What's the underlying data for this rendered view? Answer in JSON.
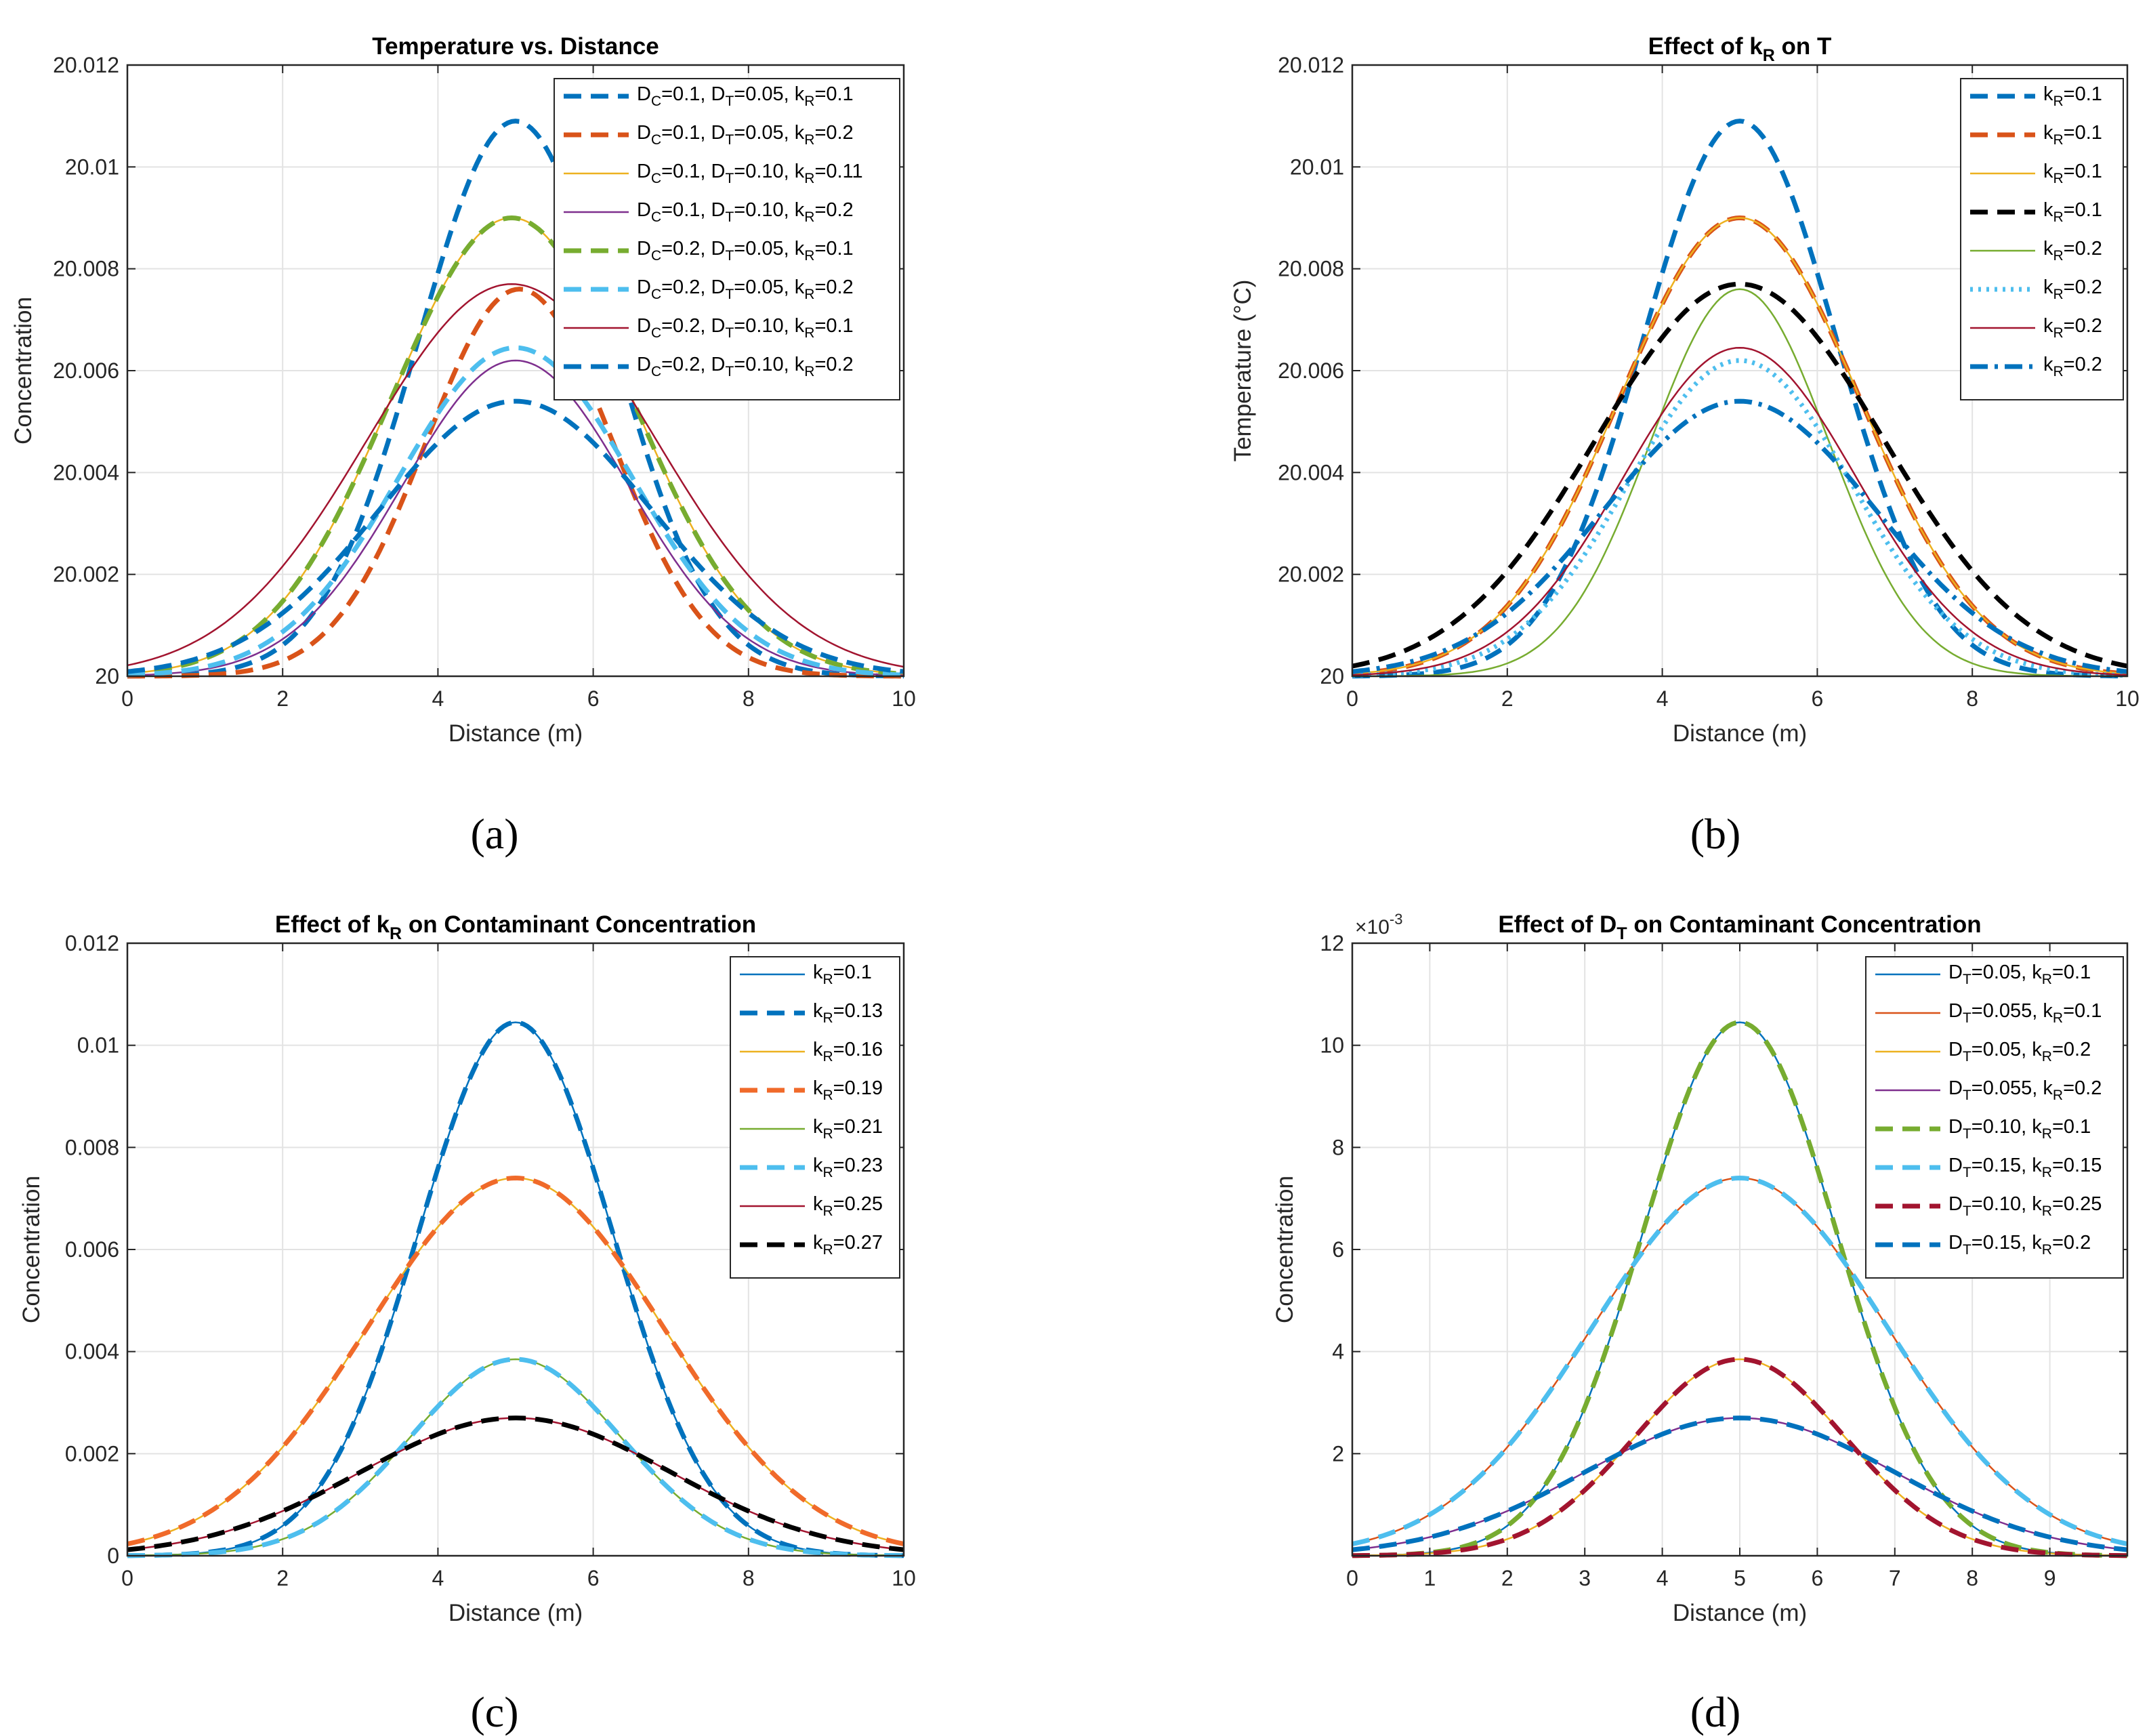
{
  "chart_data": [
    {
      "id": "a",
      "type": "line",
      "panel_label": "(a)",
      "title": {
        "segments": [
          {
            "t": "Temperature vs. Distance"
          }
        ]
      },
      "xlabel": "Distance (m)",
      "ylabel": "Concentration",
      "xlim": [
        0,
        10
      ],
      "ylim": [
        20,
        20.012
      ],
      "xticks": [
        "0",
        "2",
        "4",
        "6",
        "8",
        "10"
      ],
      "yticks": [
        "20",
        "20.002",
        "20.004",
        "20.006",
        "20.008",
        "20.01",
        "20.012"
      ],
      "grid": true,
      "legend_position": "top-right",
      "series": [
        {
          "label": [
            {
              "t": "D"
            },
            {
              "s": "C"
            },
            {
              "t": "=0.1, D"
            },
            {
              "s": "T"
            },
            {
              "t": "=0.05, k"
            },
            {
              "s": "R"
            },
            {
              "t": "=0.1"
            }
          ],
          "color": "#0072BD",
          "style": "dash",
          "width": "thick",
          "peak": 0.0109,
          "center": 5,
          "sigma": 1.25
        },
        {
          "label": [
            {
              "t": "D"
            },
            {
              "s": "C"
            },
            {
              "t": "=0.1, D"
            },
            {
              "s": "T"
            },
            {
              "t": "=0.05, k"
            },
            {
              "s": "R"
            },
            {
              "t": "=0.2"
            }
          ],
          "color": "#D95319",
          "style": "dash",
          "width": "thick",
          "peak": 0.0076,
          "center": 5.05,
          "sigma": 1.2
        },
        {
          "label": [
            {
              "t": "D"
            },
            {
              "s": "C"
            },
            {
              "t": "=0.1, D"
            },
            {
              "s": "T"
            },
            {
              "t": "=0.10, k"
            },
            {
              "s": "R"
            },
            {
              "t": "=0.11"
            }
          ],
          "color": "#EDB120",
          "style": "solid",
          "width": "thin",
          "peak": 0.009,
          "center": 4.95,
          "sigma": 1.55
        },
        {
          "label": [
            {
              "t": "D"
            },
            {
              "s": "C"
            },
            {
              "t": "=0.1, D"
            },
            {
              "s": "T"
            },
            {
              "t": "=0.10, k"
            },
            {
              "s": "R"
            },
            {
              "t": "=0.2"
            }
          ],
          "color": "#7E2F8E",
          "style": "solid",
          "width": "thin",
          "peak": 0.0062,
          "center": 5,
          "sigma": 1.45
        },
        {
          "label": [
            {
              "t": "D"
            },
            {
              "s": "C"
            },
            {
              "t": "=0.2, D"
            },
            {
              "s": "T"
            },
            {
              "t": "=0.05, k"
            },
            {
              "s": "R"
            },
            {
              "t": "=0.1"
            }
          ],
          "color": "#77AC30",
          "style": "dash",
          "width": "thick",
          "peak": 0.009,
          "center": 4.95,
          "sigma": 1.55
        },
        {
          "label": [
            {
              "t": "D"
            },
            {
              "s": "C"
            },
            {
              "t": "=0.2, D"
            },
            {
              "s": "T"
            },
            {
              "t": "=0.05, k"
            },
            {
              "s": "R"
            },
            {
              "t": "=0.2"
            }
          ],
          "color": "#4DBEEE",
          "style": "dash",
          "width": "thick",
          "peak": 0.00645,
          "center": 5,
          "sigma": 1.5
        },
        {
          "label": [
            {
              "t": "D"
            },
            {
              "s": "C"
            },
            {
              "t": "=0.2, D"
            },
            {
              "s": "T"
            },
            {
              "t": "=0.10, k"
            },
            {
              "s": "R"
            },
            {
              "t": "=0.1"
            }
          ],
          "color": "#A2142F",
          "style": "solid",
          "width": "thin",
          "peak": 0.0077,
          "center": 4.95,
          "sigma": 1.85
        },
        {
          "label": [
            {
              "t": "D"
            },
            {
              "s": "C"
            },
            {
              "t": "=0.2, D"
            },
            {
              "s": "T"
            },
            {
              "t": "=0.10, k"
            },
            {
              "s": "R"
            },
            {
              "t": "=0.2"
            }
          ],
          "color": "#0072BD",
          "style": "dash",
          "width": "thick",
          "peak": 0.0054,
          "center": 5,
          "sigma": 1.75
        }
      ]
    },
    {
      "id": "b",
      "type": "line",
      "panel_label": "(b)",
      "title": {
        "segments": [
          {
            "t": "Effect of k"
          },
          {
            "s": "R"
          },
          {
            "t": " on T"
          }
        ]
      },
      "xlabel": "Distance (m)",
      "ylabel": "Temperature (°C)",
      "xlim": [
        0,
        10
      ],
      "ylim": [
        20,
        20.012
      ],
      "xticks": [
        "0",
        "2",
        "4",
        "6",
        "8",
        "10"
      ],
      "yticks": [
        "20",
        "20.002",
        "20.004",
        "20.006",
        "20.008",
        "20.01",
        "20.012"
      ],
      "grid": true,
      "legend_position": "top-right",
      "series": [
        {
          "label": [
            {
              "t": "k"
            },
            {
              "s": "R"
            },
            {
              "t": "=0.1"
            }
          ],
          "color": "#0072BD",
          "style": "dash",
          "width": "thick",
          "peak": 0.0109,
          "center": 5,
          "sigma": 1.25
        },
        {
          "label": [
            {
              "t": "k"
            },
            {
              "s": "R"
            },
            {
              "t": "=0.1"
            }
          ],
          "color": "#D95319",
          "style": "dash",
          "width": "thick",
          "peak": 0.009,
          "center": 5,
          "sigma": 1.55
        },
        {
          "label": [
            {
              "t": "k"
            },
            {
              "s": "R"
            },
            {
              "t": "=0.1"
            }
          ],
          "color": "#EDB120",
          "style": "solid",
          "width": "thin",
          "peak": 0.009,
          "center": 5,
          "sigma": 1.55
        },
        {
          "label": [
            {
              "t": "k"
            },
            {
              "s": "R"
            },
            {
              "t": "=0.1"
            }
          ],
          "color": "#000000",
          "style": "dash",
          "width": "thick",
          "peak": 0.0077,
          "center": 5,
          "sigma": 1.85
        },
        {
          "label": [
            {
              "t": "k"
            },
            {
              "s": "R"
            },
            {
              "t": "=0.2"
            }
          ],
          "color": "#77AC30",
          "style": "solid",
          "width": "thin",
          "peak": 0.0076,
          "center": 5,
          "sigma": 1.15
        },
        {
          "label": [
            {
              "t": "k"
            },
            {
              "s": "R"
            },
            {
              "t": "=0.2"
            }
          ],
          "color": "#4DBEEE",
          "style": "dot",
          "width": "thick",
          "peak": 0.0062,
          "center": 5,
          "sigma": 1.45
        },
        {
          "label": [
            {
              "t": "k"
            },
            {
              "s": "R"
            },
            {
              "t": "=0.2"
            }
          ],
          "color": "#A2142F",
          "style": "solid",
          "width": "thin",
          "peak": 0.00645,
          "center": 5,
          "sigma": 1.5
        },
        {
          "label": [
            {
              "t": "k"
            },
            {
              "s": "R"
            },
            {
              "t": "=0.2"
            }
          ],
          "color": "#0072BD",
          "style": "dashdot",
          "width": "thick",
          "peak": 0.0054,
          "center": 5,
          "sigma": 1.75
        }
      ]
    },
    {
      "id": "c",
      "type": "line",
      "panel_label": "(c)",
      "title": {
        "segments": [
          {
            "t": "Effect of k"
          },
          {
            "s": "R"
          },
          {
            "t": " on Contaminant Concentration"
          }
        ]
      },
      "xlabel": "Distance (m)",
      "ylabel": "Concentration",
      "xlim": [
        0,
        10
      ],
      "ylim": [
        0,
        0.012
      ],
      "xticks": [
        "0",
        "2",
        "4",
        "6",
        "8",
        "10"
      ],
      "yticks": [
        "0",
        "0.002",
        "0.004",
        "0.006",
        "0.008",
        "0.01",
        "0.012"
      ],
      "grid": true,
      "legend_position": "top-right",
      "series": [
        {
          "label": [
            {
              "t": "k"
            },
            {
              "s": "R"
            },
            {
              "t": "=0.1"
            }
          ],
          "color": "#0072BD",
          "style": "solid",
          "width": "thin",
          "peak": 0.01045,
          "center": 5,
          "sigma": 1.25
        },
        {
          "label": [
            {
              "t": "k"
            },
            {
              "s": "R"
            },
            {
              "t": "=0.13"
            }
          ],
          "color": "#0072BD",
          "style": "dash",
          "width": "thick",
          "peak": 0.01045,
          "center": 5,
          "sigma": 1.25
        },
        {
          "label": [
            {
              "t": "k"
            },
            {
              "s": "R"
            },
            {
              "t": "=0.16"
            }
          ],
          "color": "#EDB120",
          "style": "solid",
          "width": "thin",
          "peak": 0.0074,
          "center": 5,
          "sigma": 1.9
        },
        {
          "label": [
            {
              "t": "k"
            },
            {
              "s": "R"
            },
            {
              "t": "=0.19"
            }
          ],
          "color": "#F06A2A",
          "style": "dash",
          "width": "thick",
          "peak": 0.0074,
          "center": 5,
          "sigma": 1.9
        },
        {
          "label": [
            {
              "t": "k"
            },
            {
              "s": "R"
            },
            {
              "t": "=0.21"
            }
          ],
          "color": "#77AC30",
          "style": "solid",
          "width": "thin",
          "peak": 0.00385,
          "center": 5,
          "sigma": 1.35
        },
        {
          "label": [
            {
              "t": "k"
            },
            {
              "s": "R"
            },
            {
              "t": "=0.23"
            }
          ],
          "color": "#4DBEEE",
          "style": "dash",
          "width": "thick",
          "peak": 0.00385,
          "center": 5,
          "sigma": 1.35
        },
        {
          "label": [
            {
              "t": "k"
            },
            {
              "s": "R"
            },
            {
              "t": "=0.25"
            }
          ],
          "color": "#A2142F",
          "style": "solid",
          "width": "thin",
          "peak": 0.0027,
          "center": 5,
          "sigma": 2.0
        },
        {
          "label": [
            {
              "t": "k"
            },
            {
              "s": "R"
            },
            {
              "t": "=0.27"
            }
          ],
          "color": "#000000",
          "style": "dash",
          "width": "thick",
          "peak": 0.0027,
          "center": 5,
          "sigma": 2.0
        }
      ]
    },
    {
      "id": "d",
      "type": "line",
      "panel_label": "(d)",
      "title": {
        "segments": [
          {
            "t": "Effect of D"
          },
          {
            "s": "T"
          },
          {
            "t": " on Contaminant Concentration"
          }
        ]
      },
      "xlabel": "Distance (m)",
      "ylabel": "Concentration",
      "exponent": {
        "base": "×10",
        "power": "-3"
      },
      "xlim": [
        0,
        10
      ],
      "ylim": [
        0,
        12
      ],
      "xticks": [
        "0",
        "1",
        "2",
        "3",
        "4",
        "5",
        "6",
        "7",
        "8",
        "9"
      ],
      "yticks": [
        "",
        "2",
        "4",
        "6",
        "8",
        "10",
        "12"
      ],
      "grid": true,
      "legend_position": "top-right",
      "series": [
        {
          "label": [
            {
              "t": "D"
            },
            {
              "s": "T"
            },
            {
              "t": "=0.05, k"
            },
            {
              "s": "R"
            },
            {
              "t": "=0.1"
            }
          ],
          "color": "#0072BD",
          "style": "solid",
          "width": "thin",
          "peak": 10.45,
          "center": 5,
          "sigma": 1.25
        },
        {
          "label": [
            {
              "t": "D"
            },
            {
              "s": "T"
            },
            {
              "t": "=0.055, k"
            },
            {
              "s": "R"
            },
            {
              "t": "=0.1"
            }
          ],
          "color": "#D95319",
          "style": "solid",
          "width": "thin",
          "peak": 7.4,
          "center": 5,
          "sigma": 1.9
        },
        {
          "label": [
            {
              "t": "D"
            },
            {
              "s": "T"
            },
            {
              "t": "=0.05, k"
            },
            {
              "s": "R"
            },
            {
              "t": "=0.2"
            }
          ],
          "color": "#EDB120",
          "style": "solid",
          "width": "thin",
          "peak": 3.85,
          "center": 5,
          "sigma": 1.35
        },
        {
          "label": [
            {
              "t": "D"
            },
            {
              "s": "T"
            },
            {
              "t": "=0.055, k"
            },
            {
              "s": "R"
            },
            {
              "t": "=0.2"
            }
          ],
          "color": "#7E2F8E",
          "style": "solid",
          "width": "thin",
          "peak": 2.7,
          "center": 5,
          "sigma": 2.0
        },
        {
          "label": [
            {
              "t": "D"
            },
            {
              "s": "T"
            },
            {
              "t": "=0.10, k"
            },
            {
              "s": "R"
            },
            {
              "t": "=0.1"
            }
          ],
          "color": "#77AC30",
          "style": "dash",
          "width": "thick",
          "peak": 10.45,
          "center": 5,
          "sigma": 1.25
        },
        {
          "label": [
            {
              "t": "D"
            },
            {
              "s": "T"
            },
            {
              "t": "=0.15, k"
            },
            {
              "s": "R"
            },
            {
              "t": "=0.15"
            }
          ],
          "color": "#4DBEEE",
          "style": "dash",
          "width": "thick",
          "peak": 7.4,
          "center": 5,
          "sigma": 1.9
        },
        {
          "label": [
            {
              "t": "D"
            },
            {
              "s": "T"
            },
            {
              "t": "=0.10, k"
            },
            {
              "s": "R"
            },
            {
              "t": "=0.25"
            }
          ],
          "color": "#A2142F",
          "style": "dash",
          "width": "thick",
          "peak": 3.85,
          "center": 5,
          "sigma": 1.35
        },
        {
          "label": [
            {
              "t": "D"
            },
            {
              "s": "T"
            },
            {
              "t": "=0.15, k"
            },
            {
              "s": "R"
            },
            {
              "t": "=0.2"
            }
          ],
          "color": "#0072BD",
          "style": "dash",
          "width": "thick",
          "peak": 2.7,
          "center": 5,
          "sigma": 2.0
        }
      ]
    }
  ]
}
